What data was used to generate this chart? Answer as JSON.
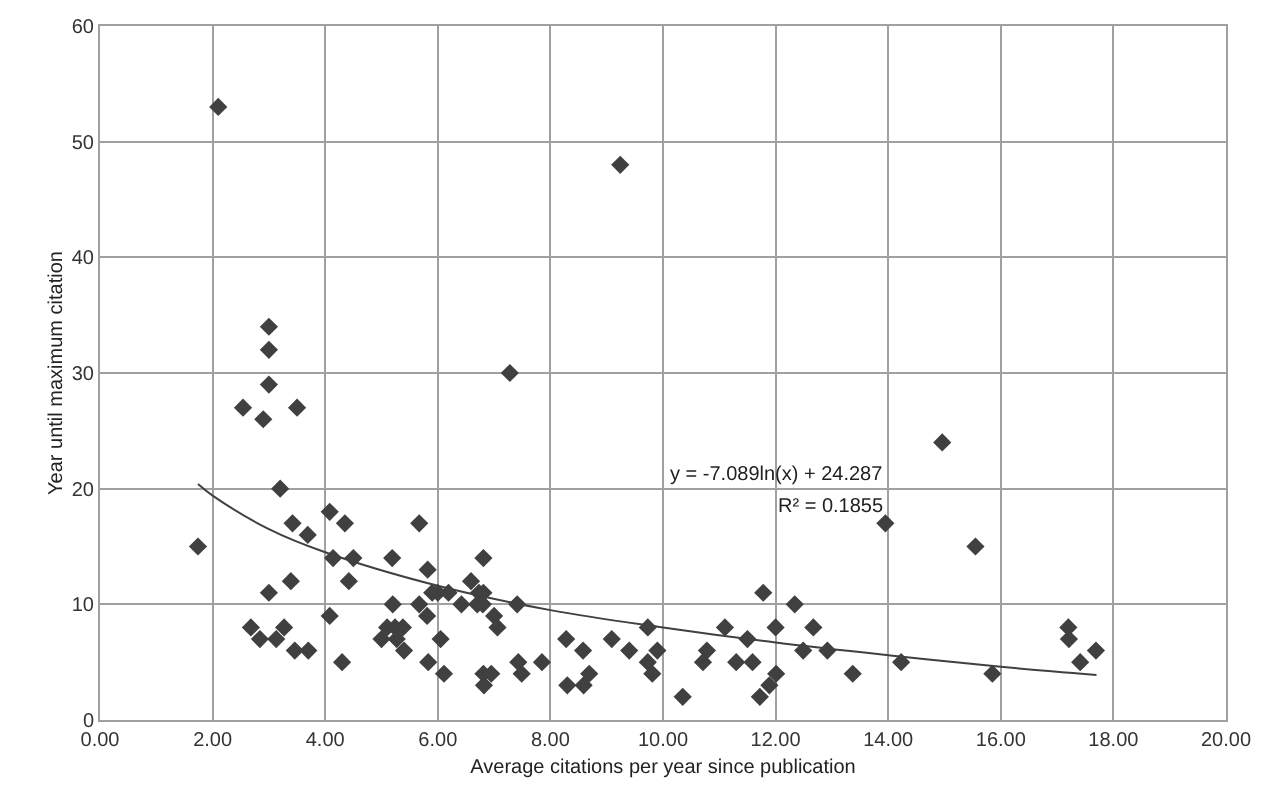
{
  "chart_data": {
    "type": "scatter",
    "xlabel": "Average citations per year since publication",
    "ylabel": "Year until maximum citation",
    "x": [
      1.74,
      2.1,
      2.54,
      2.68,
      2.84,
      2.9,
      3.0,
      3.0,
      3.0,
      3.0,
      3.13,
      3.2,
      3.27,
      3.39,
      3.42,
      3.46,
      3.5,
      3.69,
      3.7,
      4.08,
      4.08,
      4.14,
      4.3,
      4.35,
      4.42,
      4.5,
      5.0,
      5.1,
      5.19,
      5.2,
      5.24,
      5.27,
      5.38,
      5.4,
      5.67,
      5.67,
      5.81,
      5.82,
      5.83,
      5.9,
      6.0,
      6.05,
      6.11,
      6.19,
      6.42,
      6.59,
      6.7,
      6.73,
      6.81,
      6.81,
      6.8,
      6.81,
      6.82,
      6.95,
      7.0,
      7.06,
      7.28,
      7.41,
      7.43,
      7.49,
      7.85,
      8.28,
      8.3,
      8.58,
      8.59,
      8.69,
      9.09,
      9.24,
      9.4,
      9.73,
      9.73,
      9.81,
      9.9,
      10.35,
      10.71,
      10.78,
      11.1,
      11.3,
      11.5,
      11.59,
      11.72,
      11.78,
      11.89,
      12.01,
      12.0,
      12.34,
      12.49,
      12.67,
      12.92,
      13.37,
      13.95,
      14.23,
      14.96,
      15.55,
      15.85,
      17.2,
      17.21,
      17.41,
      17.69
    ],
    "series": [
      {
        "color": "#404040",
        "marker": "diamond",
        "values": [
          15,
          53,
          27,
          8,
          7,
          26,
          34,
          32,
          29,
          11,
          7,
          20,
          8,
          12,
          17,
          6,
          27,
          16,
          6,
          18,
          9,
          14,
          5,
          17,
          12,
          14,
          7,
          8,
          14,
          10,
          8,
          7,
          8,
          6,
          10,
          17,
          9,
          13,
          5,
          11,
          11,
          7,
          4,
          11,
          10,
          12,
          10,
          11,
          11,
          14,
          10,
          4,
          3,
          4,
          9,
          8,
          30,
          10,
          5,
          4,
          5,
          7,
          3,
          6,
          3,
          4,
          7,
          48,
          6,
          8,
          5,
          4,
          6,
          2,
          5,
          6,
          8,
          5,
          7,
          5,
          2,
          11,
          3,
          4,
          8,
          10,
          6,
          8,
          6,
          4,
          17,
          5,
          24,
          15,
          4,
          8,
          7,
          5,
          6
        ]
      },
      {
        "type": "line",
        "color": "#404040",
        "x": [
          1.74,
          2,
          3,
          4,
          6,
          8,
          10,
          12,
          14,
          16,
          17.7
        ],
        "values": [
          20.4,
          19.4,
          16.5,
          14.5,
          11.6,
          9.5,
          8.0,
          6.7,
          5.6,
          4.6,
          3.9
        ]
      }
    ],
    "annotations": [
      "y = -7.089ln(x) + 24.287",
      "R² = 0.1855"
    ],
    "xlim": [
      0,
      20
    ],
    "ylim": [
      0,
      60
    ],
    "xticks": [
      {
        "value": 0,
        "label": "0.00"
      },
      {
        "value": 2,
        "label": "2.00"
      },
      {
        "value": 4,
        "label": "4.00"
      },
      {
        "value": 6,
        "label": "6.00"
      },
      {
        "value": 8,
        "label": "8.00"
      },
      {
        "value": 10,
        "label": "10.00"
      },
      {
        "value": 12,
        "label": "12.00"
      },
      {
        "value": 14,
        "label": "14.00"
      },
      {
        "value": 16,
        "label": "16.00"
      },
      {
        "value": 18,
        "label": "18.00"
      },
      {
        "value": 20,
        "label": "20.00"
      }
    ],
    "yticks": [
      0,
      10,
      20,
      30,
      40,
      50,
      60
    ],
    "grid": true,
    "legend": false
  }
}
